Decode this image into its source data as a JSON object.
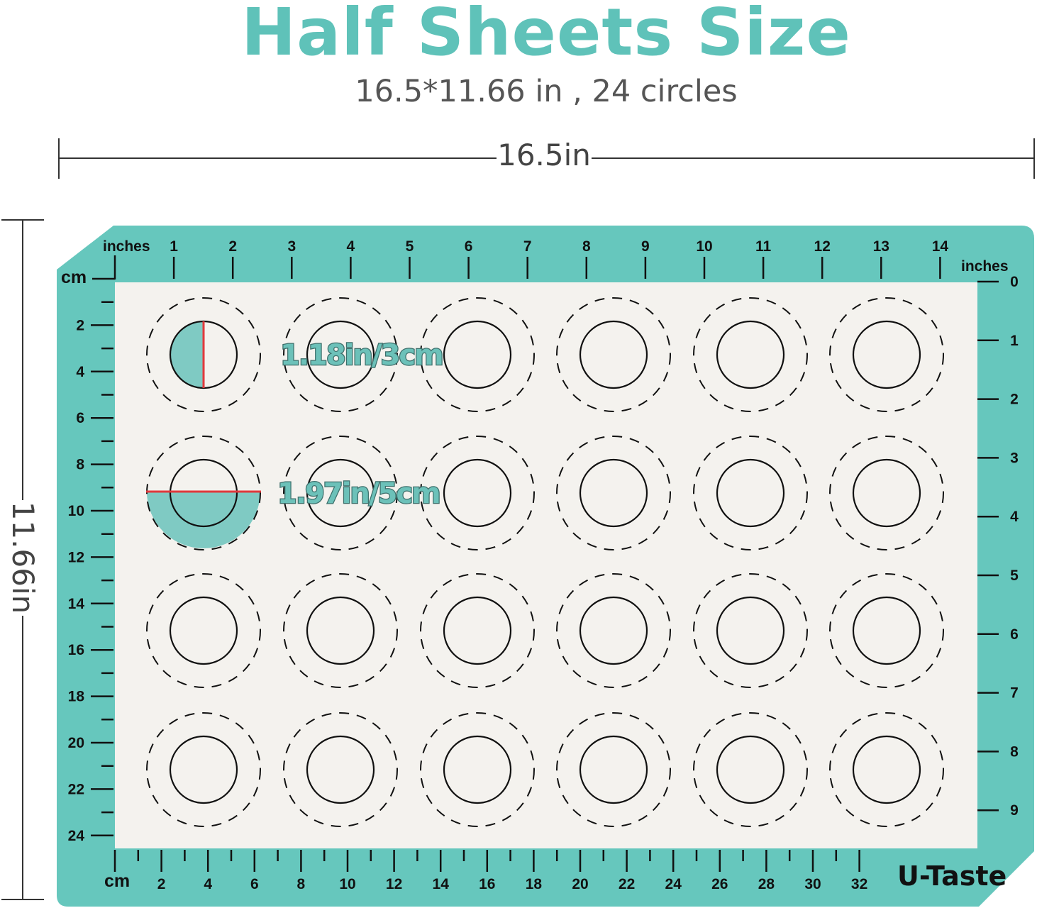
{
  "header": {
    "title": "Half Sheets Size",
    "subtitle": "16.5*11.66 in , 24 circles"
  },
  "dimensions": {
    "width_label": "16.5in",
    "height_label": "11.66in"
  },
  "mat": {
    "colors": {
      "border": "#66c7bd",
      "surface": "#f4f2ee",
      "highlight": "#7fcac3",
      "measure_line": "#e0393c"
    },
    "top_ruler": {
      "unit_label": "inches",
      "labels": [
        "1",
        "2",
        "3",
        "4",
        "5",
        "6",
        "7",
        "8",
        "9",
        "10",
        "11",
        "12",
        "13",
        "14"
      ]
    },
    "right_ruler": {
      "unit_label": "inches",
      "labels": [
        "0",
        "1",
        "2",
        "3",
        "4",
        "5",
        "6",
        "7",
        "8",
        "9"
      ]
    },
    "left_ruler": {
      "unit_label": "cm",
      "labels": [
        "2",
        "4",
        "6",
        "8",
        "10",
        "12",
        "14",
        "16",
        "18",
        "20",
        "22",
        "24"
      ]
    },
    "bottom_ruler": {
      "unit_label": "cm",
      "labels": [
        "2",
        "4",
        "6",
        "8",
        "10",
        "12",
        "14",
        "16",
        "18",
        "20",
        "22",
        "24",
        "26",
        "28",
        "30",
        "32"
      ]
    },
    "grid": {
      "rows": 4,
      "columns": 6
    },
    "inner_circle_label": "1.18in/3cm",
    "outer_circle_label": "1.97in/5cm",
    "brand": "U-Taste"
  }
}
